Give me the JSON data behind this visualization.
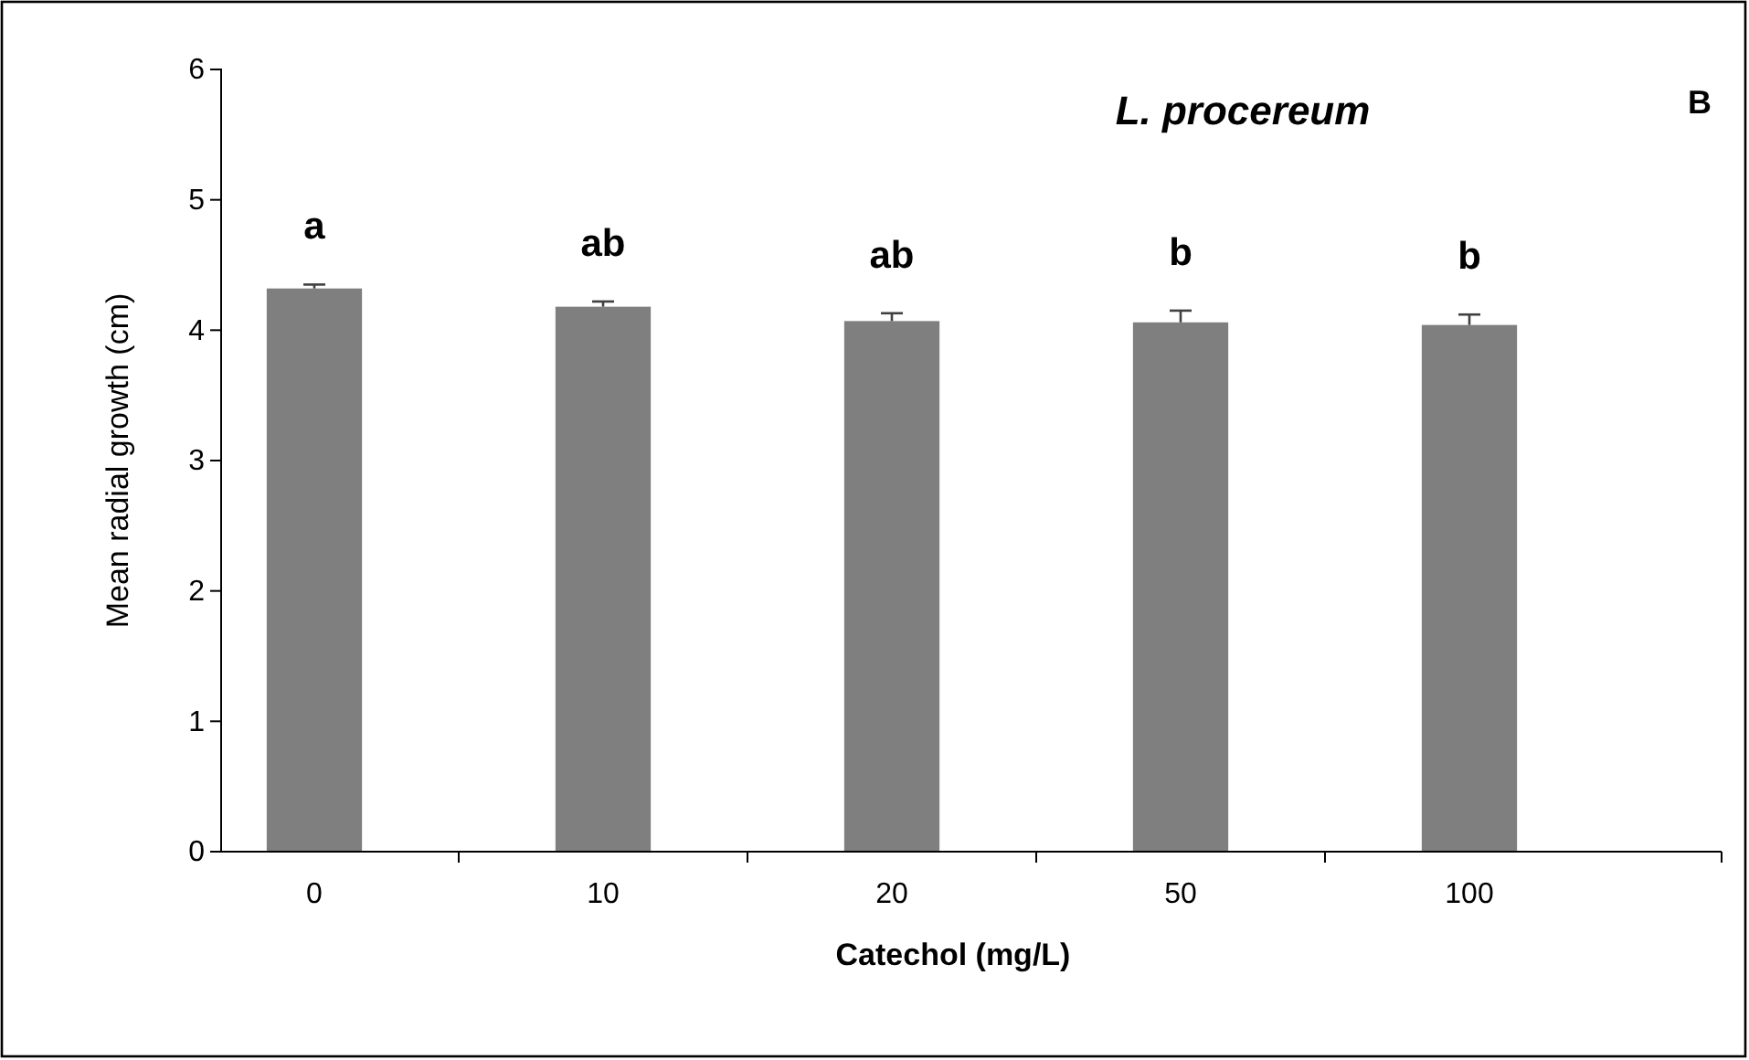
{
  "chart_data": {
    "type": "bar",
    "title": "L. procereum",
    "xlabel": "Catechol (mg/L)",
    "ylabel": "Mean radial growth (cm)",
    "categories": [
      "0",
      "10",
      "20",
      "50",
      "100"
    ],
    "values": [
      4.32,
      4.18,
      4.07,
      4.06,
      4.04
    ],
    "errors": [
      [
        4.32,
        4.35
      ],
      [
        4.18,
        4.22
      ],
      [
        4.07,
        4.13
      ],
      [
        4.06,
        4.15
      ],
      [
        4.04,
        4.12
      ]
    ],
    "color": "#7f7f7f",
    "ylim": [
      0,
      6
    ],
    "yticks": [
      0,
      1,
      2,
      3,
      4,
      5,
      6
    ],
    "grid": false,
    "annotations": [
      "a",
      "ab",
      "ab",
      "b",
      "b",
      "B"
    ]
  }
}
